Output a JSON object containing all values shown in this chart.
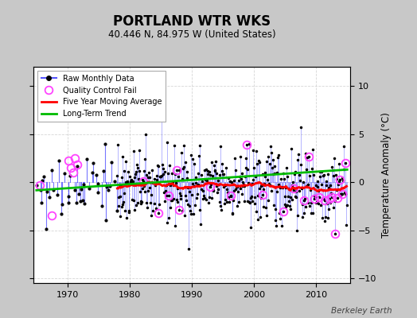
{
  "title": "PORTLAND WTR WKS",
  "subtitle": "40.446 N, 84.975 W (United States)",
  "ylabel": "Temperature Anomaly (°C)",
  "attribution": "Berkeley Earth",
  "xlim": [
    1964.5,
    2015.5
  ],
  "ylim": [
    -10.5,
    12
  ],
  "yticks": [
    -10,
    -5,
    0,
    5,
    10
  ],
  "xticks": [
    1970,
    1980,
    1990,
    2000,
    2010
  ],
  "fig_bg_color": "#c8c8c8",
  "plot_bg_color": "#ffffff",
  "raw_line_color": "#5555ff",
  "raw_dot_color": "#000000",
  "qc_fail_color": "#ff44ff",
  "moving_avg_color": "#ff0000",
  "trend_color": "#00bb00",
  "grid_color": "#cccccc",
  "seed": 42,
  "n_years_sparse": 13,
  "n_months_dense": 444,
  "start_year_sparse": 1965.0,
  "start_year_dense": 1978.0,
  "trend_slope": 0.00016,
  "trend_intercept": -0.5,
  "noise_scale_sparse": 1.8,
  "noise_scale_dense": 2.0
}
